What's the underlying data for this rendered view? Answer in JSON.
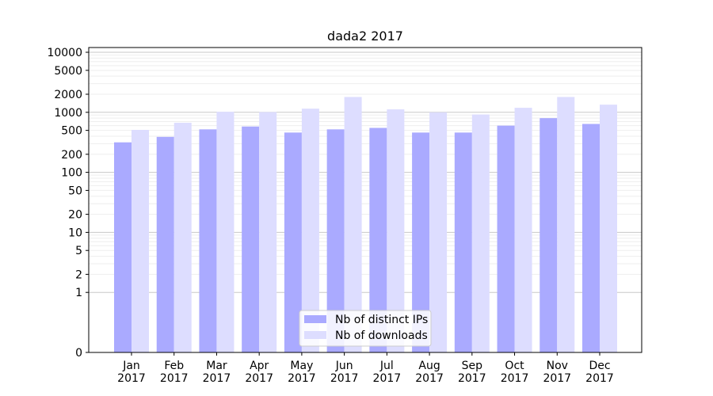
{
  "chart_data": {
    "type": "bar",
    "title": "dada2 2017",
    "xlabel": "",
    "ylabel": "",
    "y_scale": "symlog",
    "ylim": [
      0,
      10000
    ],
    "y_ticks": [
      0,
      1,
      2,
      5,
      10,
      20,
      50,
      100,
      200,
      500,
      1000,
      2000,
      5000,
      10000
    ],
    "y_tick_labels": [
      "0",
      "1",
      "2",
      "5",
      "10",
      "20",
      "50",
      "100",
      "200",
      "500",
      "1000",
      "2000",
      "5000",
      "10000"
    ],
    "grid": true,
    "legend_position": "bottom-center",
    "categories": [
      "Jan",
      "Feb",
      "Mar",
      "Apr",
      "May",
      "Jun",
      "Jul",
      "Aug",
      "Sep",
      "Oct",
      "Nov",
      "Dec"
    ],
    "category_sublabels": [
      "2017",
      "2017",
      "2017",
      "2017",
      "2017",
      "2017",
      "2017",
      "2017",
      "2017",
      "2017",
      "2017",
      "2017"
    ],
    "series": [
      {
        "name": "Nb of distinct IPs",
        "color": "#aaaaff",
        "values": [
          316,
          390,
          520,
          580,
          460,
          520,
          550,
          460,
          460,
          600,
          800,
          640
        ]
      },
      {
        "name": "Nb of downloads",
        "color": "#ddddff",
        "values": [
          510,
          670,
          1020,
          1010,
          1150,
          1800,
          1120,
          1000,
          920,
          1190,
          1800,
          1340
        ]
      }
    ]
  }
}
